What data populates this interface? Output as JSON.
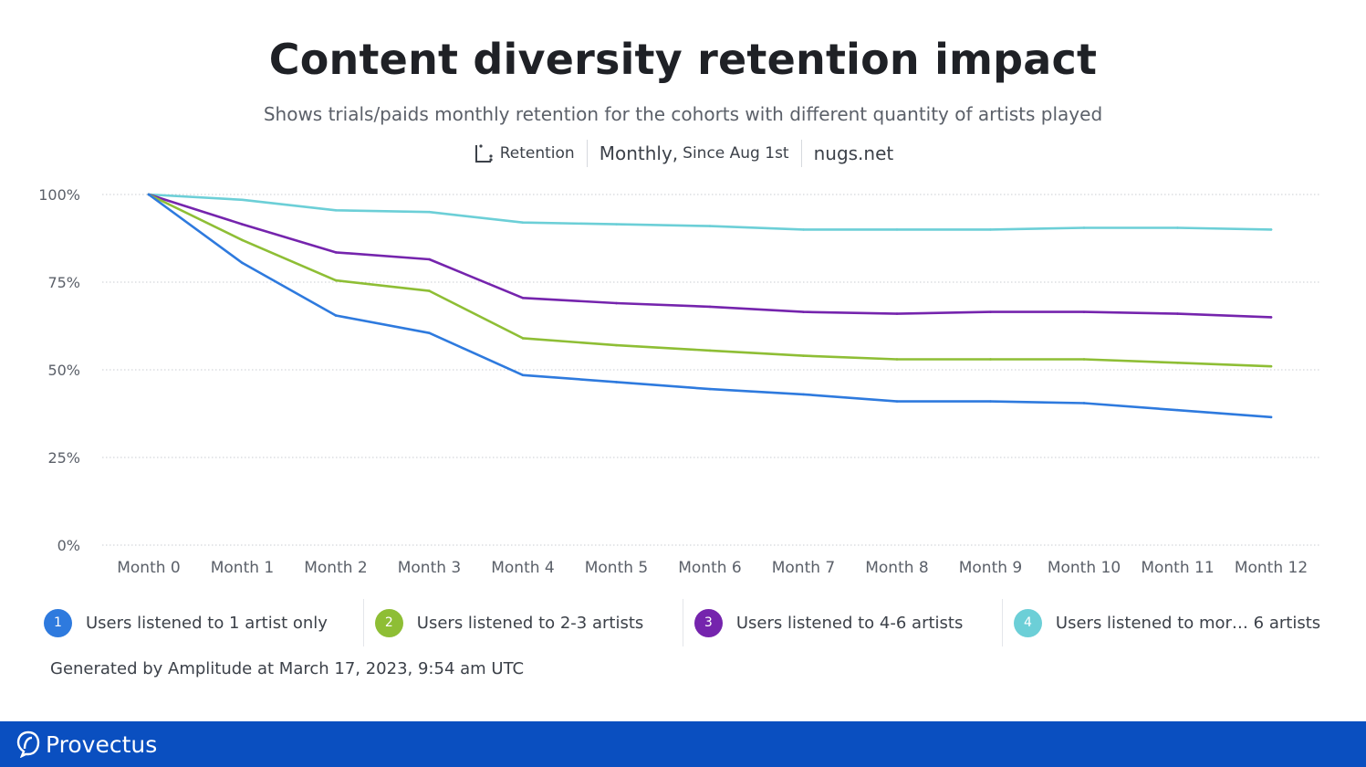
{
  "header": {
    "title": "Content diversity retention impact",
    "subtitle": "Shows trials/paids monthly retention for the cohorts with different quantity of artists played"
  },
  "meta": {
    "retention_label": "Retention",
    "interval_label": "Monthly,",
    "since_label": "Since Aug 1st",
    "project_label": "nugs.net"
  },
  "chart_data": {
    "type": "line",
    "title": "Content diversity retention impact",
    "subtitle": "Shows trials/paids monthly retention for the cohorts with different quantity of artists played",
    "x": [
      "Month 0",
      "Month 1",
      "Month 2",
      "Month 3",
      "Month 4",
      "Month 5",
      "Month 6",
      "Month 7",
      "Month 8",
      "Month 9",
      "Month 10",
      "Month 11",
      "Month 12"
    ],
    "yticks": [
      0,
      25,
      50,
      75,
      100
    ],
    "ytick_labels": [
      "0%",
      "25%",
      "50%",
      "75%",
      "100%"
    ],
    "ylim": [
      0,
      100
    ],
    "grid": true,
    "legend_position": "bottom",
    "series": [
      {
        "name": "Users listened to 1 artist only",
        "index": "1",
        "color": "#2e7ade",
        "values": [
          100,
          80.5,
          65.5,
          60.5,
          48.5,
          46.5,
          44.5,
          43,
          41,
          41,
          40.5,
          38.5,
          36.5
        ]
      },
      {
        "name": "Users listened to 2-3 artists",
        "index": "2",
        "color": "#8ebe35",
        "values": [
          100,
          87,
          75.5,
          72.5,
          59,
          57,
          55.5,
          54,
          53,
          53,
          53,
          52,
          51
        ]
      },
      {
        "name": "Users listened to 4-6 artists",
        "index": "3",
        "color": "#7524ad",
        "values": [
          100,
          91.5,
          83.5,
          81.5,
          70.5,
          69,
          68,
          66.5,
          66,
          66.5,
          66.5,
          66,
          65
        ]
      },
      {
        "name": "Users listened to more than 6 artists",
        "legend_label": "Users listened to mor…  6 artists",
        "index": "4",
        "color": "#6ccfd7",
        "values": [
          100,
          98.5,
          95.5,
          95,
          92,
          91.5,
          91,
          90,
          90,
          90,
          90.5,
          90.5,
          90
        ]
      }
    ]
  },
  "footnote": "Generated by Amplitude at March 17, 2023, 9:54 am UTC",
  "footer": {
    "brand": "Provectus",
    "color": "#0a4fc0"
  }
}
